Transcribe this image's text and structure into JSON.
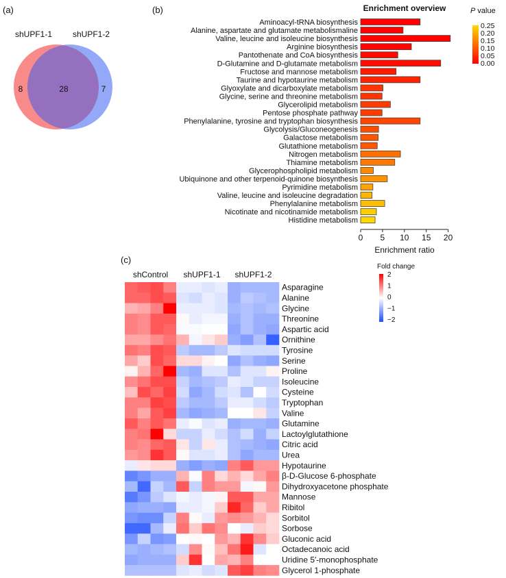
{
  "panels": {
    "a": "(a)",
    "b": "(b)",
    "c": "(c)"
  },
  "chart_data": [
    {
      "type": "venn",
      "sets": [
        {
          "name": "shUPF1-1",
          "unique": "8",
          "color": "#f88a8a"
        },
        {
          "name": "shUPF1-2",
          "unique": "7",
          "color": "#93a8f7"
        }
      ],
      "intersection": "28",
      "intersection_color": "#9570bf"
    },
    {
      "type": "bar",
      "orientation": "horizontal",
      "title": "Enrichment overview",
      "xlabel": "Enrichment ratio",
      "xlim": [
        0,
        20
      ],
      "xticks": [
        "0",
        "5",
        "10",
        "15",
        "20"
      ],
      "categories": [
        "Aminoacyl-tRNA biosynthesis",
        "Alanine, aspartate and glutamate metabolismaline",
        "Valine, leucine and isoleucine biosynthesis",
        "Arginine biosynthesis",
        "Pantothenate and CoA biosynthesis",
        "D-Glutamine and D-glutamate metabolism",
        "Fructose and mannose metabolism",
        "Taurine and hypotaurine metabolism",
        "Glyoxylate and dicarboxylate metabolism",
        "Glycine, serine and threonine metabolism",
        "Glycerolipid metabolism",
        "Pentose phosphate pathway",
        "Phenylalanine, tyrosine and tryptophan biosynthesis",
        "Glycolysis/Gluconeogenesis",
        "Galactose metabolism",
        "Glutathione metabolism",
        "Nitrogen metabolism",
        "Thiamine metabolism",
        "Glycerophospholipid metabolism",
        "Ubiquinone and other terpenoid-quinone biosynthesis",
        "Pyrimidine metabolism",
        "Valine, leucine and isoleucine degradation",
        "Phenylalanine metabolism",
        "Nicotinate and nicotinamide metabolism",
        "Histidine metabolism"
      ],
      "values": [
        13.6,
        9.7,
        20.5,
        11.6,
        8.5,
        18.3,
        8.1,
        13.6,
        5.1,
        4.9,
        6.8,
        4.9,
        13.6,
        4.1,
        4.0,
        3.8,
        9.1,
        7.8,
        2.9,
        6.1,
        2.8,
        2.6,
        5.5,
        3.6,
        3.3
      ],
      "p_values": [
        0.001,
        0.002,
        0.003,
        0.005,
        0.01,
        0.015,
        0.03,
        0.04,
        0.06,
        0.06,
        0.07,
        0.07,
        0.08,
        0.09,
        0.1,
        0.1,
        0.13,
        0.14,
        0.16,
        0.17,
        0.19,
        0.21,
        0.22,
        0.24,
        0.25
      ],
      "legend": {
        "title_italic": "P",
        "title": " value",
        "ticks": [
          "0.25",
          "0.20",
          "0.15",
          "0.10",
          "0.05",
          "0.00"
        ],
        "range": [
          0,
          0.25
        ],
        "color_low": "#ff0000",
        "color_high": "#ffd800",
        "placement": "top-right"
      }
    },
    {
      "type": "heatmap",
      "groups": [
        "shControl",
        "shUPF1-1",
        "shUPF1-2"
      ],
      "replicates_per_group": 4,
      "rows": [
        "Asparagine",
        "Alanine",
        "Glycine",
        "Threonine",
        "Aspartic acid",
        "Ornithine",
        "Tyrosine",
        "Serine",
        "Proline",
        "Isoleucine",
        "Cysteine",
        "Tryptophan",
        "Valine",
        "Glutamine",
        "Lactoylglutathione",
        "Citric acid",
        "Urea",
        "Hypotaurine",
        "β-D-Glucose 6-phosphate",
        "Dihydroxyacetone phosphate",
        "Mannose",
        "Ribitol",
        "Sorbitol",
        "Sorbose",
        "Gluconic acid",
        "Octadecanoic acid",
        "Uridine 5′-monophosphate",
        "Glycerol 1-phosphate"
      ],
      "values": [
        [
          1.2,
          1.3,
          1.4,
          1.0,
          -0.2,
          -0.2,
          -0.3,
          -0.2,
          -0.9,
          -0.8,
          -0.8,
          -0.8
        ],
        [
          1.2,
          1.2,
          1.4,
          1.3,
          -0.3,
          -0.4,
          -0.2,
          -0.3,
          -0.9,
          -0.6,
          -0.7,
          -0.8
        ],
        [
          0.6,
          0.7,
          1.0,
          2.0,
          -0.2,
          -0.2,
          -0.2,
          -0.3,
          -0.8,
          -0.7,
          -0.8,
          -0.7
        ],
        [
          1.0,
          0.9,
          1.3,
          1.3,
          0.05,
          -0.2,
          -0.1,
          -0.1,
          -0.9,
          -0.7,
          -0.9,
          -0.9
        ],
        [
          1.0,
          0.9,
          1.3,
          1.2,
          -0.05,
          -0.05,
          0,
          0,
          -1.0,
          -0.7,
          -0.9,
          -1.0
        ],
        [
          0.7,
          0.7,
          0.9,
          1.1,
          0.6,
          -0.1,
          0.2,
          0.4,
          -0.9,
          -1.1,
          -0.7,
          -1.8
        ],
        [
          1.1,
          1.0,
          1.4,
          1.3,
          -0.6,
          -0.8,
          -0.8,
          -0.6,
          -0.3,
          -0.4,
          -0.4,
          -0.4
        ],
        [
          0.7,
          0.4,
          1.4,
          1.2,
          0.3,
          0.3,
          0.1,
          0,
          -1.0,
          -0.7,
          -0.9,
          -1.0
        ],
        [
          0.1,
          0.6,
          1.2,
          2.0,
          -0.8,
          -0.9,
          -0.3,
          -0.3,
          -0.7,
          -0.3,
          -0.3,
          0.1
        ],
        [
          0.9,
          1.1,
          1.4,
          1.4,
          -0.5,
          -0.8,
          -0.7,
          -0.6,
          -0.2,
          -0.3,
          -0.5,
          -0.5
        ],
        [
          0.5,
          1.4,
          1.2,
          1.5,
          -0.4,
          -1.0,
          -0.8,
          -0.4,
          -0.3,
          -0.7,
          0,
          -0.4
        ],
        [
          1.0,
          1.0,
          1.5,
          1.4,
          -0.6,
          -0.8,
          -0.8,
          -0.6,
          -0.2,
          -0.2,
          -0.4,
          -0.6
        ],
        [
          1.0,
          0.7,
          1.3,
          1.5,
          -0.8,
          -1.0,
          -0.9,
          -0.8,
          0,
          0,
          0.2,
          -0.5
        ],
        [
          1.3,
          1.0,
          1.3,
          1.1,
          -0.2,
          -0.05,
          -0.3,
          -0.2,
          -0.9,
          -0.8,
          -0.8,
          -0.9
        ],
        [
          1.0,
          1.1,
          2.0,
          0.3,
          -0.5,
          -0.5,
          -0.2,
          -0.4,
          -0.7,
          -0.4,
          -0.9,
          -0.5
        ],
        [
          1.0,
          0.9,
          1.2,
          1.3,
          0.2,
          -0.5,
          0.2,
          -0.2,
          -0.7,
          -0.8,
          -0.9,
          -1.0
        ],
        [
          0.8,
          0.9,
          1.6,
          1.3,
          0.05,
          -0.3,
          -0.3,
          -0.2,
          -0.7,
          -1.0,
          -0.8,
          -0.8
        ],
        [
          -0.2,
          0.2,
          0.3,
          0.3,
          -0.9,
          -1.1,
          -0.9,
          -1.0,
          1.0,
          1.3,
          0.8,
          0.8
        ],
        [
          -1.4,
          -1.2,
          -0.9,
          -0.9,
          0.6,
          -0.05,
          1.0,
          0.3,
          0.6,
          0.3,
          0.7,
          1.0
        ],
        [
          -0.8,
          -1.7,
          -0.5,
          -0.8,
          1.3,
          -0.5,
          1.0,
          0.8,
          0.8,
          -0.1,
          0.05,
          0.8
        ],
        [
          -1.5,
          -1.2,
          -0.6,
          -0.3,
          -0.1,
          -0.2,
          -0.1,
          0.1,
          1.3,
          1.3,
          0.7,
          0.7
        ],
        [
          -1.0,
          -0.9,
          -0.9,
          -1.0,
          -0.2,
          -0.2,
          -0.1,
          0.4,
          1.7,
          1.2,
          0.4,
          0.7
        ],
        [
          -1.2,
          -1.3,
          -1.3,
          -0.5,
          1.0,
          0.05,
          -0.2,
          0.8,
          0.9,
          0.8,
          0.6,
          0.3
        ],
        [
          -1.7,
          -1.7,
          -0.8,
          -0.2,
          1.1,
          0.4,
          1.1,
          0.9,
          0,
          -0.2,
          0.4,
          0.3
        ],
        [
          -1.2,
          -0.5,
          -1.2,
          -1.1,
          0,
          0.05,
          0,
          0.8,
          0.6,
          1.6,
          0.9,
          0.4
        ],
        [
          -0.8,
          -0.9,
          -0.8,
          -0.7,
          -0.4,
          0.9,
          0.05,
          0.5,
          1.1,
          1.8,
          -0.3,
          0
        ],
        [
          -1.0,
          -0.9,
          -0.9,
          -0.9,
          0.4,
          1.6,
          0,
          0.7,
          0.6,
          1.0,
          0,
          0
        ],
        [
          -0.7,
          -0.7,
          -0.7,
          -0.7,
          -0.3,
          -0.2,
          -0.4,
          -0.3,
          1.3,
          1.5,
          1.0,
          0.9
        ]
      ],
      "legend": {
        "title": "Fold change",
        "ticks": [
          "2",
          "1",
          "0",
          "−1",
          "−2"
        ],
        "range": [
          -2,
          2
        ],
        "color_low": "#1f4fff",
        "color_mid": "#ffffff",
        "color_high": "#ff0000"
      }
    }
  ]
}
